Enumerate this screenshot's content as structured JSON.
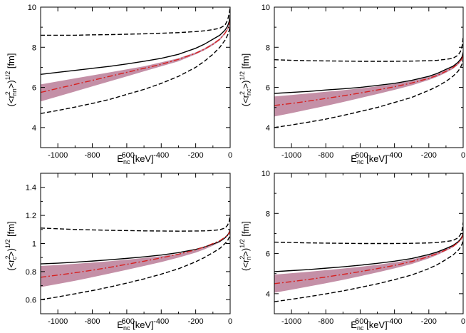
{
  "chart_data": [
    {
      "type": "line",
      "panel": "top-left",
      "xlabel": "E_nc [keV]",
      "ylabel": "(<r_nn^2>)^{1/2} [fm]",
      "xlim": [
        -1100,
        0
      ],
      "ylim": [
        3,
        10
      ],
      "xticks": [
        -1000,
        -800,
        -600,
        -400,
        -200,
        0
      ],
      "yticks": [
        4,
        6,
        8,
        10
      ],
      "x": [
        -1100,
        -1000,
        -900,
        -800,
        -700,
        -600,
        -500,
        -400,
        -300,
        -200,
        -150,
        -100,
        -60,
        -30,
        -15,
        -5,
        0
      ],
      "series": [
        {
          "style": "solid",
          "color": "#000000",
          "values": [
            6.65,
            6.75,
            6.85,
            6.95,
            7.05,
            7.17,
            7.3,
            7.45,
            7.65,
            7.95,
            8.15,
            8.4,
            8.6,
            8.85,
            9.05,
            9.3,
            9.6
          ]
        },
        {
          "style": "dashed-upper",
          "color": "#000000",
          "values": [
            8.6,
            8.6,
            8.6,
            8.62,
            8.63,
            8.65,
            8.67,
            8.7,
            8.73,
            8.78,
            8.82,
            8.88,
            8.95,
            9.1,
            9.35,
            9.7,
            10.0
          ]
        },
        {
          "style": "dashed-lower",
          "color": "#000000",
          "values": [
            4.7,
            4.85,
            5.02,
            5.2,
            5.4,
            5.65,
            5.9,
            6.2,
            6.55,
            7.0,
            7.3,
            7.65,
            8.0,
            8.35,
            8.6,
            8.85,
            9.1
          ]
        },
        {
          "style": "dashdot",
          "color": "#d62020",
          "values": [
            5.75,
            5.95,
            6.15,
            6.35,
            6.55,
            6.75,
            6.95,
            7.15,
            7.4,
            7.7,
            7.9,
            8.15,
            8.4,
            8.7,
            8.9,
            9.1,
            9.3
          ]
        },
        {
          "style": "band-upper",
          "color": "#b06b8a",
          "values": [
            6.15,
            6.3,
            6.45,
            6.6,
            6.75,
            6.9,
            7.05,
            7.25,
            7.45,
            7.75,
            7.95,
            8.2,
            8.45,
            8.75,
            8.95,
            9.15,
            9.35
          ]
        },
        {
          "style": "band-lower",
          "color": "#b06b8a",
          "values": [
            5.3,
            5.55,
            5.8,
            6.05,
            6.3,
            6.55,
            6.8,
            7.05,
            7.3,
            7.65,
            7.85,
            8.1,
            8.35,
            8.65,
            8.85,
            9.05,
            9.25
          ]
        }
      ]
    },
    {
      "type": "line",
      "panel": "top-right",
      "xlabel": "E_nc [keV]",
      "ylabel": "(<r_nc^2>)^{1/2} [fm]",
      "xlim": [
        -1100,
        0
      ],
      "ylim": [
        3,
        10
      ],
      "xticks": [
        -1000,
        -800,
        -600,
        -400,
        -200,
        0
      ],
      "yticks": [
        4,
        6,
        8,
        10
      ],
      "x": [
        -1100,
        -1000,
        -900,
        -800,
        -700,
        -600,
        -500,
        -400,
        -300,
        -200,
        -150,
        -100,
        -60,
        -30,
        -15,
        -5,
        0
      ],
      "series": [
        {
          "style": "solid",
          "color": "#000000",
          "values": [
            5.7,
            5.75,
            5.8,
            5.87,
            5.93,
            6.0,
            6.1,
            6.2,
            6.35,
            6.55,
            6.7,
            6.9,
            7.05,
            7.25,
            7.4,
            7.55,
            7.75
          ]
        },
        {
          "style": "dashed-upper",
          "color": "#000000",
          "values": [
            7.38,
            7.35,
            7.33,
            7.32,
            7.31,
            7.3,
            7.3,
            7.3,
            7.31,
            7.33,
            7.35,
            7.4,
            7.45,
            7.6,
            7.8,
            8.1,
            8.5
          ]
        },
        {
          "style": "dashed-lower",
          "color": "#000000",
          "values": [
            4.0,
            4.13,
            4.27,
            4.42,
            4.6,
            4.8,
            5.0,
            5.25,
            5.5,
            5.85,
            6.05,
            6.3,
            6.55,
            6.8,
            7.0,
            7.2,
            7.4
          ]
        },
        {
          "style": "dashdot",
          "color": "#d62020",
          "values": [
            5.1,
            5.2,
            5.32,
            5.45,
            5.58,
            5.72,
            5.87,
            6.03,
            6.22,
            6.45,
            6.6,
            6.8,
            6.98,
            7.18,
            7.32,
            7.45,
            7.6
          ]
        },
        {
          "style": "band-upper",
          "color": "#b06b8a",
          "values": [
            5.55,
            5.62,
            5.7,
            5.78,
            5.86,
            5.95,
            6.05,
            6.17,
            6.32,
            6.52,
            6.67,
            6.87,
            7.03,
            7.22,
            7.36,
            7.5,
            7.68
          ]
        },
        {
          "style": "band-lower",
          "color": "#b06b8a",
          "values": [
            4.55,
            4.72,
            4.9,
            5.08,
            5.27,
            5.47,
            5.67,
            5.88,
            6.1,
            6.37,
            6.53,
            6.73,
            6.92,
            7.12,
            7.27,
            7.4,
            7.55
          ]
        }
      ]
    },
    {
      "type": "line",
      "panel": "bottom-left",
      "xlabel": "E_nc [keV]",
      "ylabel": "(<r_c^2>)^{1/2} [fm]",
      "xlim": [
        -1100,
        0
      ],
      "ylim": [
        0.5,
        1.5
      ],
      "xticks": [
        -1000,
        -800,
        -600,
        -400,
        -200,
        0
      ],
      "yticks": [
        0.6,
        0.8,
        1.0,
        1.2,
        1.4
      ],
      "ytick_labels": [
        "0.6",
        "0.8",
        "1",
        "1.2",
        "1.4"
      ],
      "x": [
        -1100,
        -1000,
        -900,
        -800,
        -700,
        -600,
        -500,
        -400,
        -300,
        -200,
        -150,
        -100,
        -60,
        -30,
        -15,
        -5,
        0
      ],
      "series": [
        {
          "style": "solid",
          "color": "#000000",
          "values": [
            0.855,
            0.86,
            0.867,
            0.875,
            0.884,
            0.894,
            0.905,
            0.918,
            0.935,
            0.958,
            0.975,
            0.995,
            1.015,
            1.04,
            1.06,
            1.08,
            1.1
          ]
        },
        {
          "style": "dashed-upper",
          "color": "#000000",
          "values": [
            1.11,
            1.105,
            1.1,
            1.097,
            1.094,
            1.092,
            1.09,
            1.089,
            1.088,
            1.089,
            1.09,
            1.093,
            1.098,
            1.11,
            1.13,
            1.16,
            1.2
          ]
        },
        {
          "style": "dashed-lower",
          "color": "#000000",
          "values": [
            0.6,
            0.62,
            0.642,
            0.665,
            0.69,
            0.718,
            0.748,
            0.782,
            0.82,
            0.87,
            0.9,
            0.935,
            0.965,
            1.0,
            1.02,
            1.045,
            1.07
          ]
        },
        {
          "style": "dashdot",
          "color": "#d62020",
          "values": [
            0.76,
            0.775,
            0.792,
            0.81,
            0.83,
            0.852,
            0.874,
            0.898,
            0.924,
            0.955,
            0.975,
            1.0,
            1.02,
            1.045,
            1.06,
            1.075,
            1.09
          ]
        },
        {
          "style": "band-upper",
          "color": "#b06b8a",
          "values": [
            0.84,
            0.847,
            0.855,
            0.864,
            0.874,
            0.885,
            0.897,
            0.91,
            0.927,
            0.952,
            0.97,
            0.99,
            1.01,
            1.035,
            1.055,
            1.075,
            1.095
          ]
        },
        {
          "style": "band-lower",
          "color": "#b06b8a",
          "values": [
            0.69,
            0.712,
            0.735,
            0.76,
            0.786,
            0.813,
            0.84,
            0.868,
            0.9,
            0.935,
            0.958,
            0.985,
            1.008,
            1.035,
            1.052,
            1.068,
            1.085
          ]
        }
      ]
    },
    {
      "type": "line",
      "panel": "bottom-right",
      "xlabel": "E_nc [keV]",
      "ylabel": "(<r_n^2>)^{1/2} [fm]",
      "xlim": [
        -1100,
        0
      ],
      "ylim": [
        3,
        10
      ],
      "xticks": [
        -1000,
        -800,
        -600,
        -400,
        -200,
        0
      ],
      "yticks": [
        4,
        6,
        8,
        10
      ],
      "x": [
        -1100,
        -1000,
        -900,
        -800,
        -700,
        -600,
        -500,
        -400,
        -300,
        -200,
        -150,
        -100,
        -60,
        -30,
        -15,
        -5,
        0
      ],
      "series": [
        {
          "style": "solid",
          "color": "#000000",
          "values": [
            5.1,
            5.15,
            5.2,
            5.27,
            5.34,
            5.42,
            5.51,
            5.62,
            5.75,
            5.95,
            6.08,
            6.25,
            6.4,
            6.58,
            6.72,
            6.87,
            7.05
          ]
        },
        {
          "style": "dashed-upper",
          "color": "#000000",
          "values": [
            6.57,
            6.55,
            6.53,
            6.52,
            6.51,
            6.5,
            6.5,
            6.5,
            6.51,
            6.53,
            6.55,
            6.6,
            6.65,
            6.78,
            6.95,
            7.2,
            7.55
          ]
        },
        {
          "style": "dashed-lower",
          "color": "#000000",
          "values": [
            3.6,
            3.72,
            3.85,
            3.99,
            4.14,
            4.31,
            4.49,
            4.7,
            4.93,
            5.25,
            5.45,
            5.7,
            5.92,
            6.15,
            6.32,
            6.5,
            6.7
          ]
        },
        {
          "style": "dashdot",
          "color": "#d62020",
          "values": [
            4.5,
            4.6,
            4.71,
            4.83,
            4.96,
            5.1,
            5.25,
            5.41,
            5.6,
            5.85,
            6.0,
            6.18,
            6.35,
            6.55,
            6.68,
            6.82,
            6.95
          ]
        },
        {
          "style": "band-upper",
          "color": "#b06b8a",
          "values": [
            4.95,
            5.02,
            5.09,
            5.17,
            5.25,
            5.34,
            5.44,
            5.56,
            5.7,
            5.92,
            6.06,
            6.24,
            6.4,
            6.6,
            6.73,
            6.87,
            7.0
          ]
        },
        {
          "style": "band-lower",
          "color": "#b06b8a",
          "values": [
            4.05,
            4.2,
            4.36,
            4.52,
            4.69,
            4.87,
            5.06,
            5.26,
            5.48,
            5.76,
            5.93,
            6.13,
            6.31,
            6.51,
            6.65,
            6.79,
            6.92
          ]
        }
      ]
    }
  ]
}
